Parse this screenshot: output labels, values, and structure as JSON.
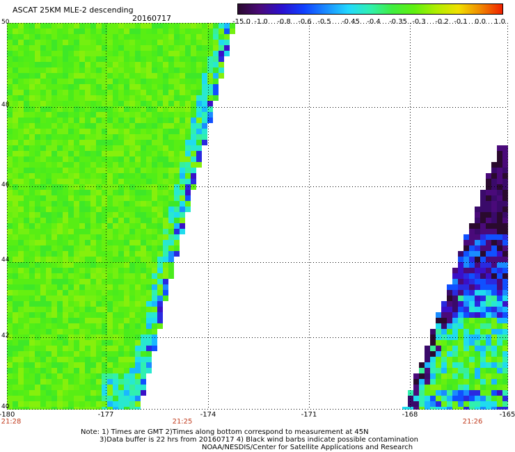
{
  "header": {
    "title": "ASCAT 25KM MLE-2 descending",
    "date": "20160717"
  },
  "colorbar": {
    "labels": [
      "-15.0",
      "-1.0",
      "-0.8",
      "-0.6",
      "-0.5",
      "-0.45",
      "-0.4",
      "-0.35",
      "-0.3",
      "-0.2",
      "-0.1",
      "0.0",
      "1.0"
    ],
    "colors": [
      "#2a0a2e",
      "#4a0a7a",
      "#2a10d0",
      "#1040ff",
      "#1a8cff",
      "#22d8ff",
      "#30f0b0",
      "#40ee40",
      "#60f010",
      "#b0ee00",
      "#f0e000",
      "#f08800",
      "#f02000"
    ]
  },
  "map": {
    "y_ticks": [
      "50",
      "48",
      "46",
      "44",
      "42",
      "40"
    ],
    "x_ticks": [
      "-180",
      "-177",
      "-174",
      "-171",
      "-168",
      "-165"
    ],
    "times": [
      "21:28",
      "21:25",
      "21:26"
    ]
  },
  "footer": {
    "line1": "Note: 1) Times are GMT 2)Times along bottom correspond to measurement at 45N",
    "line2": "3)Data buffer is 22 hrs from 20160717 4) Black wind barbs indicate possible contamination",
    "line3": "NOAA/NESDIS/Center for Satellite Applications and Research"
  }
}
